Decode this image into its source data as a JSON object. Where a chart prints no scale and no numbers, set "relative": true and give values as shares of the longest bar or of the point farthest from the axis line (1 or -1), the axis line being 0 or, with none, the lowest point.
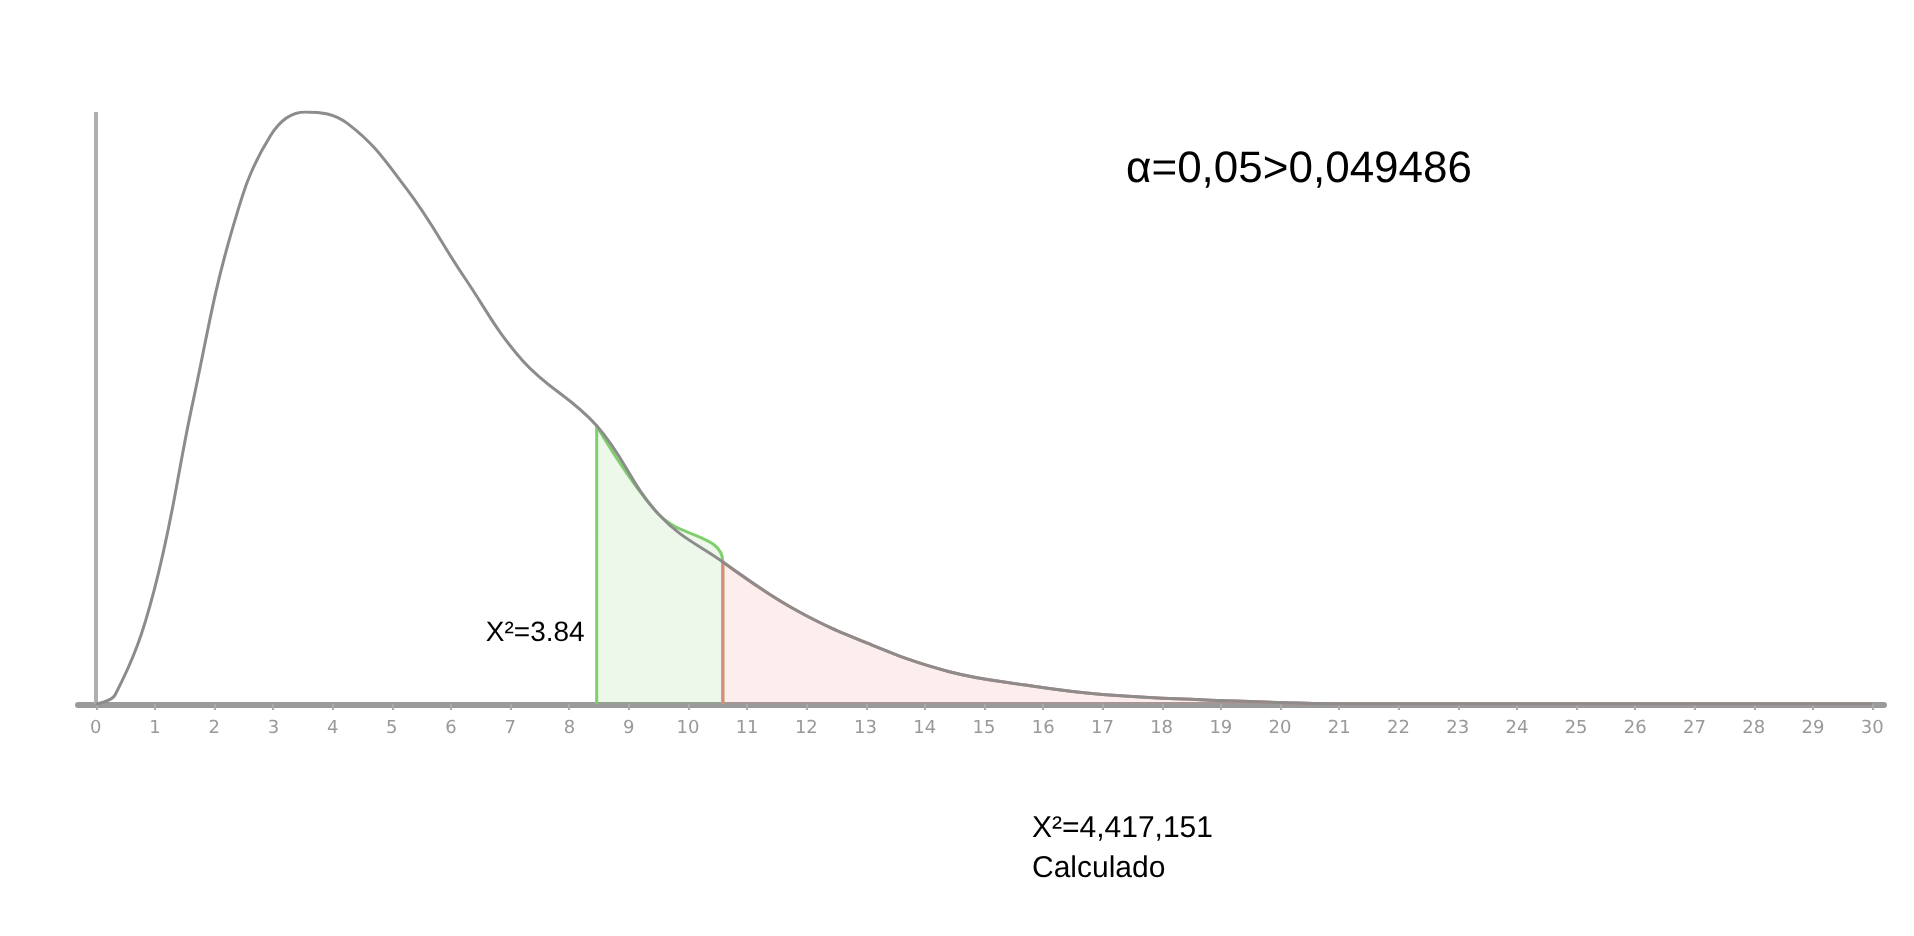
{
  "chart_data": {
    "type": "line",
    "relative": true,
    "x": [
      0,
      0.33,
      0.98,
      1.64,
      2.3,
      2.95,
      3.54,
      4.26,
      5.25,
      6.23,
      7.21,
      8.46,
      9.51,
      10.59,
      11.8,
      13.1,
      14.4,
      15.7,
      17.0,
      19.0,
      21.6,
      30
    ],
    "series": [
      {
        "color": "#8c8c8c",
        "values": [
          0,
          0.016,
          0.19,
          0.51,
          0.8,
          0.96,
          1,
          0.98,
          0.87,
          0.72,
          0.58,
          0.47,
          0.32,
          0.24,
          0.16,
          0.1,
          0.055,
          0.032,
          0.016,
          0.006,
          0,
          0
        ]
      },
      {
        "type": "area",
        "color": "#7fcf6c",
        "x": [
          8.46,
          8.46,
          9.51,
          10.59,
          10.59
        ],
        "values": [
          0,
          0.47,
          0.32,
          0.24,
          0
        ]
      },
      {
        "type": "area",
        "color": "#e0887c",
        "x": [
          10.59,
          10.59,
          11.8,
          13.1,
          14.4,
          15.7,
          17.0,
          19.0,
          21.6,
          30
        ],
        "values": [
          0,
          0.24,
          0.16,
          0.1,
          0.055,
          0.032,
          0.016,
          0.006,
          0,
          0
        ]
      }
    ],
    "xlim": [
      -0.3,
      30.2
    ],
    "xticks": [
      0,
      1,
      2,
      3,
      4,
      5,
      6,
      7,
      8,
      9,
      10,
      11,
      12,
      13,
      14,
      15,
      16,
      17,
      18,
      19,
      20,
      21,
      22,
      23,
      24,
      25,
      26,
      27,
      28,
      29,
      30
    ],
    "ref_lines": [
      {
        "axis": "x",
        "value": 0,
        "color": "#b0b0b0"
      }
    ],
    "grid": false,
    "marker": "none",
    "line_style": "solid",
    "annotations": [
      "α=0,05>0,049486",
      {
        "text": "X²=3.84",
        "x": 8.46,
        "y": 0.1
      },
      "X²=4,417,151\nCalculado"
    ]
  }
}
